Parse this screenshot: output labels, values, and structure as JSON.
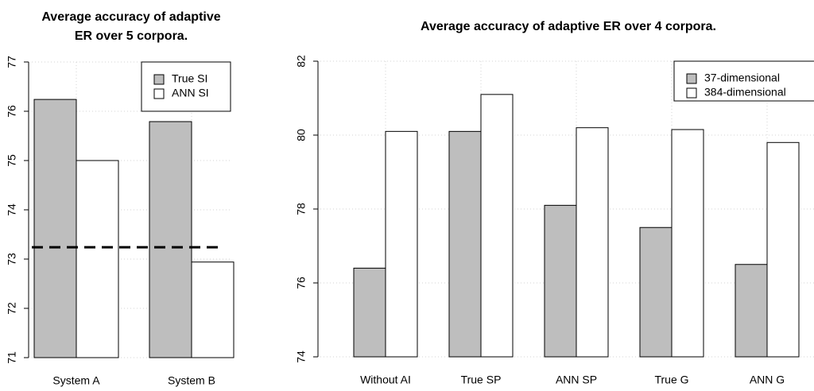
{
  "chart_data": [
    {
      "type": "bar",
      "title": [
        "Average accuracy of adaptive",
        "ER over 5 corpora."
      ],
      "categories": [
        "System A",
        "System B"
      ],
      "series": [
        {
          "name": "True SI",
          "color": "#bebebe",
          "values": [
            76.24,
            75.79
          ]
        },
        {
          "name": "ANN SI",
          "color": "#ffffff",
          "values": [
            75.0,
            72.94
          ]
        }
      ],
      "reference_line": 73.24,
      "ylim": [
        71,
        77
      ],
      "yticks": [
        71,
        72,
        73,
        74,
        75,
        76,
        77
      ],
      "grid": true,
      "legend": "top-right"
    },
    {
      "type": "bar",
      "title": [
        "Average accuracy of adaptive ER over 4 corpora."
      ],
      "categories": [
        "Without AI",
        "True SP",
        "ANN SP",
        "True G",
        "ANN G"
      ],
      "series": [
        {
          "name": "37-dimensional",
          "color": "#bebebe",
          "values": [
            76.4,
            80.1,
            78.1,
            77.5,
            76.5
          ]
        },
        {
          "name": "384-dimensional",
          "color": "#ffffff",
          "values": [
            80.1,
            81.1,
            80.2,
            80.15,
            79.8
          ]
        }
      ],
      "ylim": [
        74,
        82
      ],
      "yticks": [
        74,
        76,
        78,
        80,
        82
      ],
      "grid": true,
      "legend": "top-right"
    }
  ]
}
